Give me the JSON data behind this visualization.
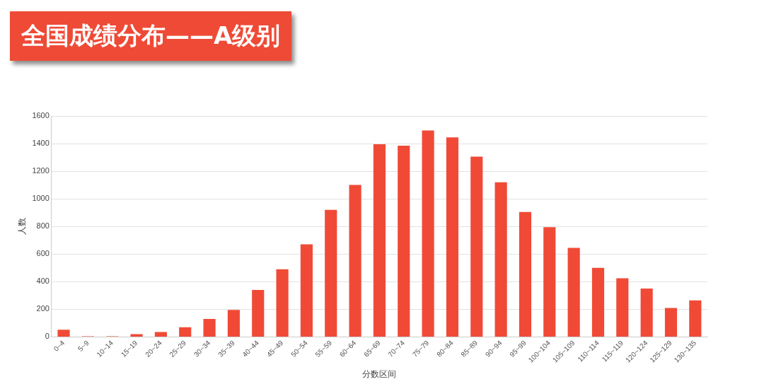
{
  "chart_data": {
    "type": "bar",
    "title": "全国成绩分布——A级别",
    "xlabel": "分数区间",
    "ylabel": "人数",
    "categories": [
      "0~4",
      "5~9",
      "10~14",
      "15~19",
      "20~24",
      "25~29",
      "30~34",
      "35~39",
      "40~44",
      "45~49",
      "50~54",
      "55~59",
      "60~64",
      "65~69",
      "70~74",
      "75~79",
      "80~84",
      "85~89",
      "90~94",
      "95~99",
      "100~104",
      "105~109",
      "110~114",
      "115~119",
      "120~124",
      "125~129",
      "130~135"
    ],
    "values": [
      52,
      5,
      5,
      20,
      35,
      70,
      130,
      195,
      340,
      490,
      670,
      920,
      1100,
      1395,
      1385,
      1495,
      1445,
      1305,
      1120,
      905,
      795,
      645,
      500,
      425,
      350,
      210,
      265
    ],
    "color": "#f04a37",
    "ylim": [
      0,
      1600
    ],
    "yticks": [
      0,
      200,
      400,
      600,
      800,
      1000,
      1200,
      1400,
      1600
    ],
    "grid": "y"
  }
}
